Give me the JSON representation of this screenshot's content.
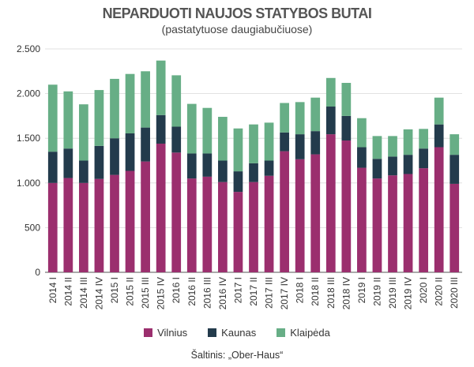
{
  "colors": {
    "vilnius": "#9b2f6e",
    "kaunas": "#233b4c",
    "klaipeda": "#67ae86",
    "gridline": "#d9d9d9",
    "axis": "#555555"
  },
  "chart_data": {
    "type": "bar",
    "stacked": true,
    "title": "NEPARDUOTI NAUJOS STATYBOS BUTAI",
    "subtitle": "(pastatytuose daugiabučiuose)",
    "source": "Šaltinis: „Ober-Haus“",
    "ylim": [
      0,
      2500
    ],
    "yticks": [
      0,
      500,
      1000,
      1500,
      2000,
      2500
    ],
    "ytick_labels": [
      "0",
      "500",
      "1.000",
      "1.500",
      "2.000",
      "2.500"
    ],
    "grid": true,
    "legend_position": "bottom",
    "categories": [
      "2014 I",
      "2014 II",
      "2014 III",
      "2014 IV",
      "2015 I",
      "2015 II",
      "2015 III",
      "2015 IV",
      "2016 I",
      "2016 II",
      "2016 III",
      "2016 IV",
      "2017 I",
      "2017 II",
      "2017 III",
      "2017 IV",
      "2018 I",
      "2018 II",
      "2018 III",
      "2018 IV",
      "2019 I",
      "2019 II",
      "2019 III",
      "2019 IV",
      "2020 I",
      "2020 II",
      "2020 III"
    ],
    "series": [
      {
        "name": "Vilnius",
        "color_key": "vilnius",
        "values": [
          1000,
          1055,
          1000,
          1045,
          1090,
          1135,
          1240,
          1440,
          1340,
          1050,
          1070,
          1010,
          900,
          1010,
          1080,
          1355,
          1265,
          1320,
          1545,
          1475,
          1170,
          1050,
          1085,
          1100,
          1165,
          1400,
          990
        ]
      },
      {
        "name": "Kaunas",
        "color_key": "kaunas",
        "values": [
          350,
          330,
          250,
          370,
          410,
          420,
          380,
          320,
          290,
          280,
          260,
          240,
          230,
          210,
          170,
          210,
          280,
          260,
          310,
          275,
          230,
          220,
          210,
          215,
          220,
          255,
          325
        ]
      },
      {
        "name": "Klaipėda",
        "color_key": "klaipeda",
        "values": [
          750,
          640,
          630,
          625,
          665,
          665,
          630,
          610,
          575,
          555,
          510,
          490,
          480,
          435,
          425,
          330,
          360,
          375,
          320,
          370,
          325,
          255,
          230,
          285,
          220,
          300,
          230
        ]
      }
    ]
  }
}
